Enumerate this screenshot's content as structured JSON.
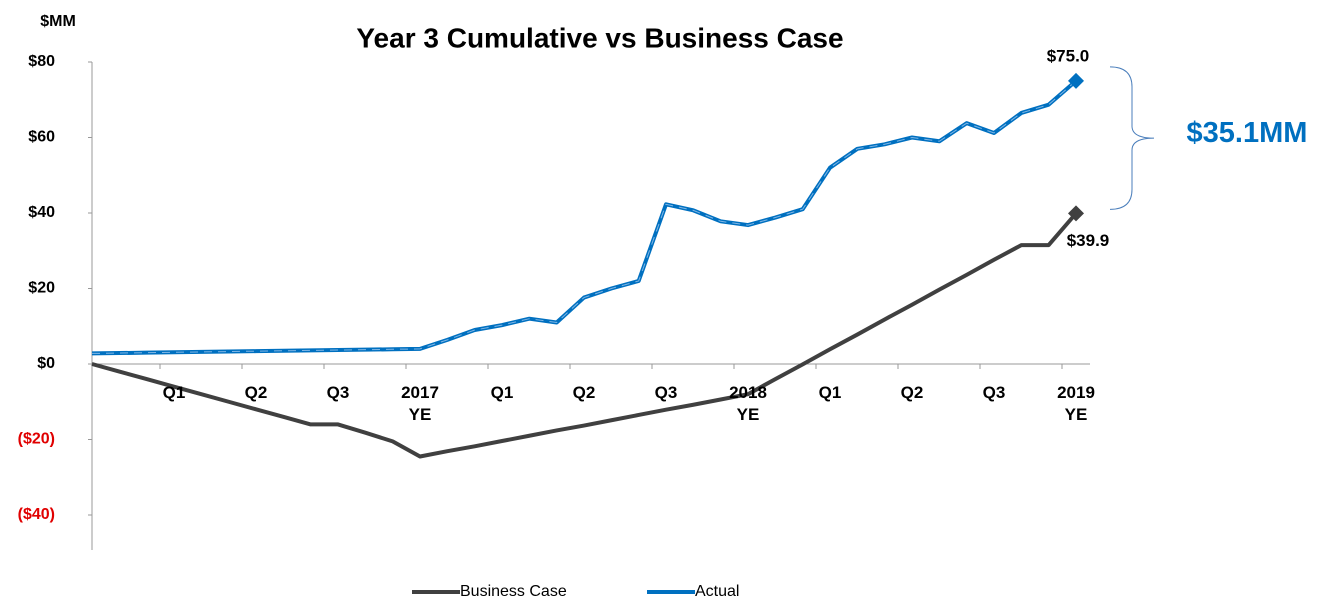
{
  "chart_data": {
    "type": "line",
    "title": "Year 3 Cumulative vs Business Case",
    "y_unit_label": "$MM",
    "annotations": [
      "$35.1MM"
    ],
    "x": [
      0,
      1,
      2,
      3,
      4,
      5,
      6,
      7,
      8,
      9,
      10,
      11,
      12,
      13,
      14,
      15,
      16,
      17,
      18,
      19,
      20,
      21,
      22,
      23,
      24,
      25,
      26,
      27,
      28,
      29,
      30,
      31,
      32,
      33,
      34,
      35,
      36
    ],
    "xlim": [
      0,
      36
    ],
    "xticks": [
      {
        "value": 3,
        "label": "Q1"
      },
      {
        "value": 6,
        "label": "Q2"
      },
      {
        "value": 9,
        "label": "Q3"
      },
      {
        "value": 12,
        "label": "2017 YE"
      },
      {
        "value": 15,
        "label": "Q1"
      },
      {
        "value": 18,
        "label": "Q2"
      },
      {
        "value": 21,
        "label": "Q3"
      },
      {
        "value": 24,
        "label": "2018 YE"
      },
      {
        "value": 27,
        "label": "Q1"
      },
      {
        "value": 30,
        "label": "Q2"
      },
      {
        "value": 33,
        "label": "Q3"
      },
      {
        "value": 36,
        "label": "2019 YE"
      }
    ],
    "ylim": [
      -40,
      80
    ],
    "yticks": [
      {
        "value": 80,
        "label": "$80"
      },
      {
        "value": 60,
        "label": "$60"
      },
      {
        "value": 40,
        "label": "$40"
      },
      {
        "value": 20,
        "label": "$20"
      },
      {
        "value": 0,
        "label": "$0"
      },
      {
        "value": -20,
        "label": "($20)"
      },
      {
        "value": -40,
        "label": "($40)"
      }
    ],
    "grid": false,
    "legend": "bottom",
    "series": [
      {
        "name": "Business Case",
        "color": "#404040",
        "values": [
          0,
          -2,
          -4,
          -6,
          -8,
          -10,
          -12,
          -14,
          -16,
          -16,
          -18.2,
          -20.5,
          -24.5,
          -23.1,
          -21.8,
          -20.4,
          -19,
          -17.6,
          -16.3,
          -14.9,
          -13.5,
          -12.1,
          -10.8,
          -9.4,
          -8,
          -4,
          -0.1,
          3.9,
          7.8,
          11.8,
          15.7,
          19.7,
          23.6,
          27.6,
          31.5,
          31.5,
          39.9
        ],
        "value_labels": [
          null,
          null,
          null,
          null,
          null,
          null,
          null,
          null,
          null,
          null,
          null,
          null,
          null,
          null,
          null,
          null,
          null,
          null,
          null,
          null,
          null,
          null,
          null,
          null,
          null,
          null,
          null,
          null,
          null,
          null,
          null,
          null,
          null,
          null,
          null,
          null,
          "$39.9"
        ]
      },
      {
        "name": "Actual",
        "color": "#0070c0",
        "values": [
          2.8,
          2.9,
          3.0,
          3.1,
          3.2,
          3.3,
          3.4,
          3.5,
          3.6,
          3.7,
          3.8,
          3.9,
          4.0,
          6.4,
          9,
          10.3,
          12,
          11,
          17.6,
          20,
          22,
          42.3,
          40.7,
          37.8,
          36.8,
          38.8,
          41,
          52,
          57,
          58.2,
          60,
          59,
          63.8,
          61.2,
          66.5,
          68.7,
          75
        ],
        "value_labels": [
          null,
          null,
          null,
          null,
          null,
          null,
          null,
          null,
          null,
          null,
          null,
          null,
          null,
          null,
          null,
          null,
          null,
          null,
          null,
          null,
          null,
          null,
          null,
          null,
          null,
          null,
          null,
          null,
          null,
          null,
          null,
          null,
          null,
          null,
          null,
          null,
          "$75.0"
        ]
      }
    ]
  }
}
